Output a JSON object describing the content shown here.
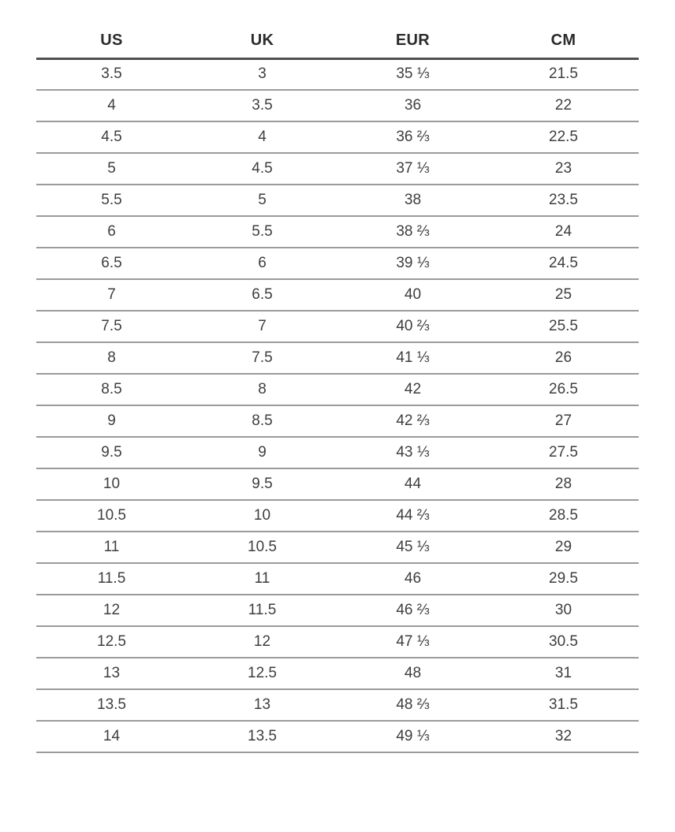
{
  "chart_data": {
    "type": "table",
    "columns": [
      "US",
      "UK",
      "EUR",
      "CM"
    ],
    "rows": [
      [
        "3.5",
        "3",
        "35 ⅓",
        "21.5"
      ],
      [
        "4",
        "3.5",
        "36",
        "22"
      ],
      [
        "4.5",
        "4",
        "36 ⅔",
        "22.5"
      ],
      [
        "5",
        "4.5",
        "37 ⅓",
        "23"
      ],
      [
        "5.5",
        "5",
        "38",
        "23.5"
      ],
      [
        "6",
        "5.5",
        "38 ⅔",
        "24"
      ],
      [
        "6.5",
        "6",
        "39 ⅓",
        "24.5"
      ],
      [
        "7",
        "6.5",
        "40",
        "25"
      ],
      [
        "7.5",
        "7",
        "40 ⅔",
        "25.5"
      ],
      [
        "8",
        "7.5",
        "41 ⅓",
        "26"
      ],
      [
        "8.5",
        "8",
        "42",
        "26.5"
      ],
      [
        "9",
        "8.5",
        "42 ⅔",
        "27"
      ],
      [
        "9.5",
        "9",
        "43 ⅓",
        "27.5"
      ],
      [
        "10",
        "9.5",
        "44",
        "28"
      ],
      [
        "10.5",
        "10",
        "44 ⅔",
        "28.5"
      ],
      [
        "11",
        "10.5",
        "45 ⅓",
        "29"
      ],
      [
        "11.5",
        "11",
        "46",
        "29.5"
      ],
      [
        "12",
        "11.5",
        "46 ⅔",
        "30"
      ],
      [
        "12.5",
        "12",
        "47 ⅓",
        "30.5"
      ],
      [
        "13",
        "12.5",
        "48",
        "31"
      ],
      [
        "13.5",
        "13",
        "48 ⅔",
        "31.5"
      ],
      [
        "14",
        "13.5",
        "49 ⅓",
        "32"
      ]
    ]
  },
  "colors": {
    "background": "#ffffff",
    "header_text": "#2b2b2b",
    "cell_text": "#3e3e3e",
    "header_rule": "#4f4f4f",
    "row_rule": "#9b9b9b"
  }
}
